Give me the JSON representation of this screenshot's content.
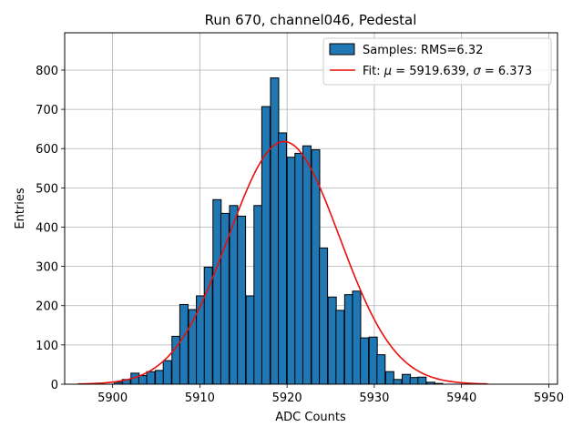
{
  "chart_data": {
    "type": "bar",
    "title": "Run 670, channel046, Pedestal",
    "xlabel": "ADC Counts",
    "ylabel": "Entries",
    "xlim": [
      5894.5,
      5951
    ],
    "ylim": [
      0,
      895
    ],
    "xticks": [
      5900,
      5910,
      5920,
      5930,
      5940,
      5950
    ],
    "yticks": [
      0,
      100,
      200,
      300,
      400,
      500,
      600,
      700,
      800
    ],
    "grid": true,
    "legend_position": "top-right",
    "bin_width": 0.94,
    "bins": [
      {
        "x0": 5900.2,
        "count": 5
      },
      {
        "x0": 5901.1,
        "count": 12
      },
      {
        "x0": 5902.1,
        "count": 28
      },
      {
        "x0": 5903.0,
        "count": 22
      },
      {
        "x0": 5903.9,
        "count": 32
      },
      {
        "x0": 5904.9,
        "count": 35
      },
      {
        "x0": 5905.8,
        "count": 60
      },
      {
        "x0": 5906.8,
        "count": 122
      },
      {
        "x0": 5907.7,
        "count": 203
      },
      {
        "x0": 5908.7,
        "count": 190
      },
      {
        "x0": 5909.6,
        "count": 225
      },
      {
        "x0": 5910.5,
        "count": 298
      },
      {
        "x0": 5911.5,
        "count": 470
      },
      {
        "x0": 5912.4,
        "count": 435
      },
      {
        "x0": 5913.4,
        "count": 455
      },
      {
        "x0": 5914.3,
        "count": 428
      },
      {
        "x0": 5915.3,
        "count": 225
      },
      {
        "x0": 5916.2,
        "count": 455
      },
      {
        "x0": 5917.1,
        "count": 707
      },
      {
        "x0": 5918.1,
        "count": 780
      },
      {
        "x0": 5919.0,
        "count": 640
      },
      {
        "x0": 5920.0,
        "count": 578
      },
      {
        "x0": 5920.9,
        "count": 588
      },
      {
        "x0": 5921.8,
        "count": 607
      },
      {
        "x0": 5922.8,
        "count": 597
      },
      {
        "x0": 5923.7,
        "count": 347
      },
      {
        "x0": 5924.7,
        "count": 222
      },
      {
        "x0": 5925.6,
        "count": 188
      },
      {
        "x0": 5926.6,
        "count": 228
      },
      {
        "x0": 5927.5,
        "count": 237
      },
      {
        "x0": 5928.4,
        "count": 118
      },
      {
        "x0": 5929.4,
        "count": 120
      },
      {
        "x0": 5930.3,
        "count": 75
      },
      {
        "x0": 5931.3,
        "count": 32
      },
      {
        "x0": 5932.2,
        "count": 12
      },
      {
        "x0": 5933.2,
        "count": 25
      },
      {
        "x0": 5934.1,
        "count": 17
      },
      {
        "x0": 5935.0,
        "count": 18
      },
      {
        "x0": 5936.0,
        "count": 5
      },
      {
        "x0": 5936.9,
        "count": 2
      }
    ],
    "fit": {
      "mu": 5919.639,
      "sigma": 6.373,
      "amplitude": 618,
      "x_range": [
        5896,
        5943
      ]
    },
    "series": [
      {
        "name": "Samples: RMS=6.32",
        "color": "#1f77b4",
        "kind": "histogram"
      },
      {
        "name_prefix": "Fit: ",
        "name_mu": "μ",
        "name_mid": " = 5919.639, ",
        "name_sigma": "σ",
        "name_suffix": " = 6.373",
        "color": "#e8100c",
        "kind": "line"
      }
    ]
  }
}
